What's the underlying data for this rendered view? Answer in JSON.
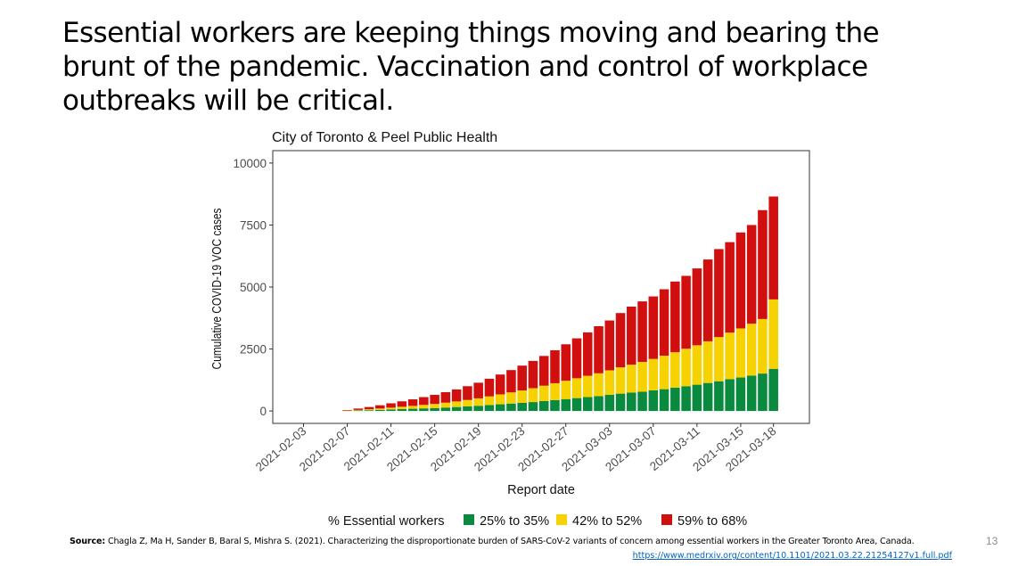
{
  "slide": {
    "title_lines": [
      "Essential workers are keeping things moving and bearing the",
      "brunt of the pandemic. Vaccination and control of workplace",
      "outbreaks will be critical."
    ],
    "source_label": "Source:",
    "source_text": "Chagla Z, Ma H, Sander B, Baral S, Mishra S. (2021). Characterizing the disproportionate burden of SARS-CoV-2 variants of concern among essential workers in the Greater Toronto Area, Canada.",
    "source_url": "https://www.medrxiv.org/content/10.1101/2021.03.22.21254127v1.full.pdf",
    "page_number": "13"
  },
  "chart_data": {
    "type": "bar",
    "stacked": true,
    "title": "City of Toronto & Peel Public Health",
    "xlabel": "Report date",
    "ylabel": "Cumulative COVID-19 VOC cases",
    "ylim": [
      -500,
      10500
    ],
    "yticks": [
      0,
      2500,
      5000,
      7500,
      10000
    ],
    "xticks": [
      "2021-02-03",
      "2021-02-07",
      "2021-02-11",
      "2021-02-15",
      "2021-02-19",
      "2021-02-23",
      "2021-02-27",
      "2021-03-03",
      "2021-03-07",
      "2021-03-11",
      "2021-03-15",
      "2021-03-18"
    ],
    "grid": false,
    "legend": {
      "title": "% Essential workers",
      "placement": "bottom"
    },
    "categories": [
      "2021-02-07",
      "2021-02-08",
      "2021-02-09",
      "2021-02-10",
      "2021-02-11",
      "2021-02-12",
      "2021-02-13",
      "2021-02-14",
      "2021-02-15",
      "2021-02-16",
      "2021-02-17",
      "2021-02-18",
      "2021-02-19",
      "2021-02-20",
      "2021-02-21",
      "2021-02-22",
      "2021-02-23",
      "2021-02-24",
      "2021-02-25",
      "2021-02-26",
      "2021-02-27",
      "2021-02-28",
      "2021-03-01",
      "2021-03-02",
      "2021-03-03",
      "2021-03-04",
      "2021-03-05",
      "2021-03-06",
      "2021-03-07",
      "2021-03-08",
      "2021-03-09",
      "2021-03-10",
      "2021-03-11",
      "2021-03-12",
      "2021-03-13",
      "2021-03-14",
      "2021-03-15",
      "2021-03-16",
      "2021-03-17",
      "2021-03-18"
    ],
    "series": [
      {
        "name": "25% to 35%",
        "color": "#0a8a3f",
        "values": [
          10,
          20,
          30,
          45,
          60,
          75,
          90,
          105,
          120,
          140,
          160,
          185,
          210,
          240,
          270,
          300,
          330,
          360,
          400,
          440,
          480,
          520,
          560,
          600,
          650,
          700,
          740,
          780,
          830,
          880,
          940,
          1000,
          1060,
          1130,
          1200,
          1280,
          1350,
          1430,
          1510,
          1700
        ]
      },
      {
        "name": "42% to 52%",
        "color": "#f5d200",
        "values": [
          10,
          25,
          40,
          55,
          75,
          95,
          115,
          140,
          165,
          195,
          225,
          260,
          300,
          350,
          400,
          450,
          500,
          560,
          620,
          680,
          740,
          800,
          860,
          920,
          990,
          1060,
          1130,
          1200,
          1270,
          1350,
          1430,
          1510,
          1590,
          1680,
          1780,
          1880,
          1980,
          2090,
          2200,
          2800
        ]
      },
      {
        "name": "59% to 68%",
        "color": "#d10f0f",
        "values": [
          20,
          55,
          90,
          130,
          175,
          220,
          265,
          315,
          365,
          425,
          485,
          555,
          630,
          710,
          800,
          900,
          1000,
          1100,
          1200,
          1330,
          1470,
          1610,
          1750,
          1900,
          2010,
          2190,
          2340,
          2440,
          2520,
          2680,
          2850,
          2940,
          3100,
          3300,
          3550,
          3650,
          3870,
          3980,
          4390,
          4150
        ]
      }
    ]
  }
}
